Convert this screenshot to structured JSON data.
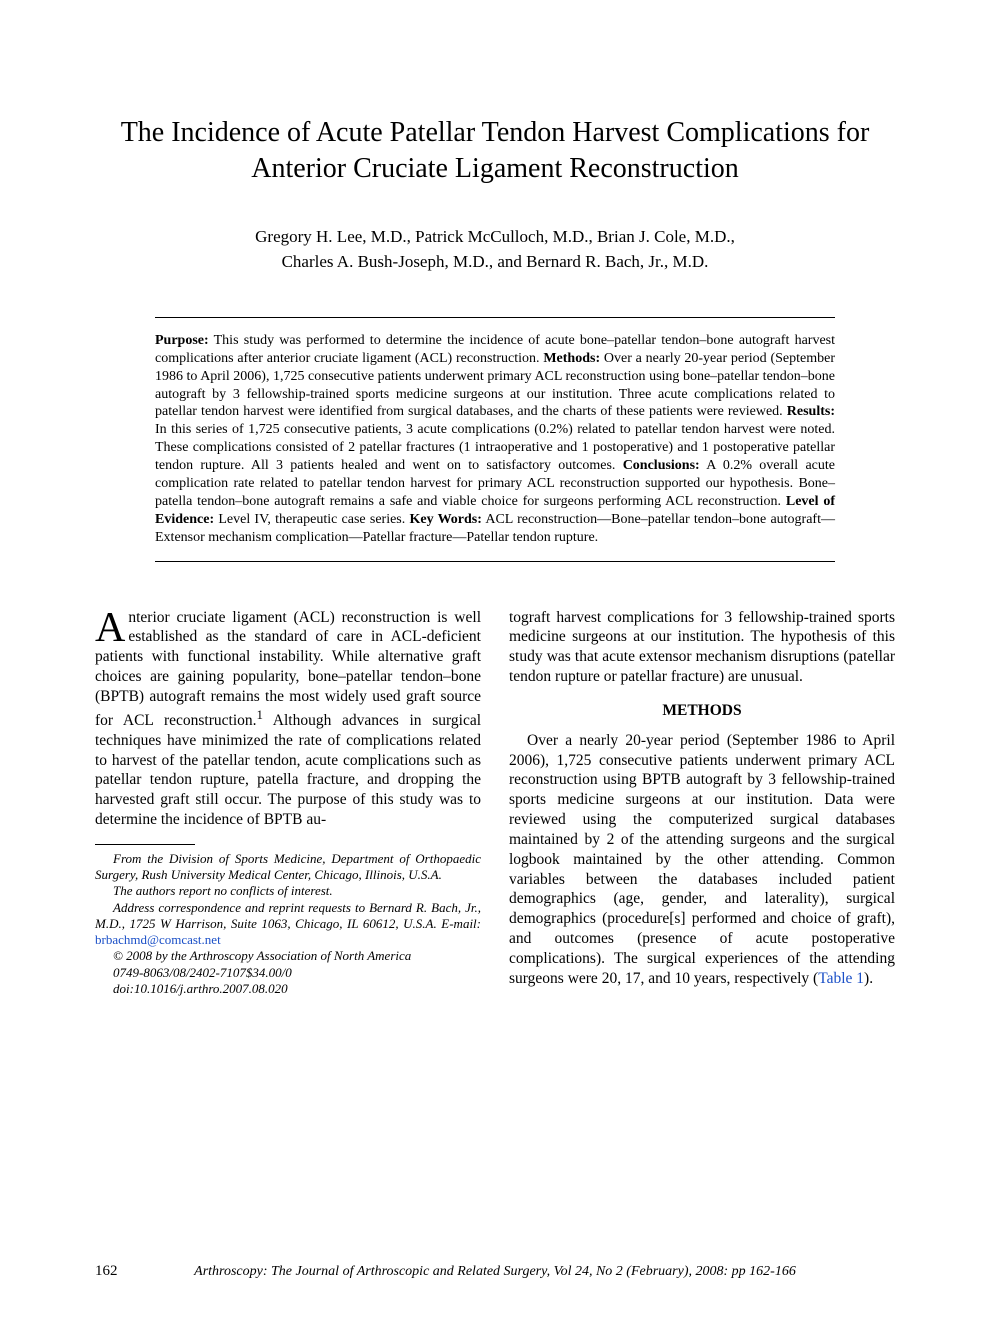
{
  "title": "The Incidence of Acute Patellar Tendon Harvest Complications for Anterior Cruciate Ligament Reconstruction",
  "authors_line1": "Gregory H. Lee, M.D., Patrick McCulloch, M.D., Brian J. Cole, M.D.,",
  "authors_line2": "Charles A. Bush-Joseph, M.D., and Bernard R. Bach, Jr., M.D.",
  "abstract": {
    "purpose_label": "Purpose:",
    "purpose": " This study was performed to determine the incidence of acute bone–patellar tendon–bone autograft harvest complications after anterior cruciate ligament (ACL) reconstruction. ",
    "methods_label": "Methods:",
    "methods": " Over a nearly 20-year period (September 1986 to April 2006), 1,725 consecutive patients underwent primary ACL reconstruction using bone–patellar tendon–bone autograft by 3 fellowship-trained sports medicine surgeons at our institution. Three acute complications related to patellar tendon harvest were identified from surgical databases, and the charts of these patients were reviewed. ",
    "results_label": "Results:",
    "results": " In this series of 1,725 consecutive patients, 3 acute complications (0.2%) related to patellar tendon harvest were noted. These complications consisted of 2 patellar fractures (1 intraoperative and 1 postoperative) and 1 postoperative patellar tendon rupture. All 3 patients healed and went on to satisfactory outcomes. ",
    "conclusions_label": "Conclusions:",
    "conclusions": " A 0.2% overall acute complication rate related to patellar tendon harvest for primary ACL reconstruction supported our hypothesis. Bone–patella tendon–bone autograft remains a safe and viable choice for surgeons performing ACL reconstruction. ",
    "loe_label": "Level of Evidence:",
    "loe": " Level IV, therapeutic case series. ",
    "keywords_label": "Key Words:",
    "keywords": " ACL reconstruction—Bone–patellar tendon–bone autograft—Extensor mechanism complication—Patellar fracture—Patellar tendon rupture."
  },
  "body": {
    "dropcap": "A",
    "intro_after_dropcap": "nterior cruciate ligament (ACL) reconstruction is well established as the standard of care in ACL-deficient patients with functional instability. While alternative graft choices are gaining popularity, bone–patellar tendon–bone (BPTB) autograft remains the most widely used graft source for ACL reconstruction.",
    "intro_sup": "1",
    "intro_rest": " Although advances in surgical techniques have minimized the rate of complications related to harvest of the patellar tendon, acute complications such as patellar tendon rupture, patella fracture, and dropping the harvested graft still occur. The purpose of this study was to determine the incidence of BPTB au-",
    "col2_top": "tograft harvest complications for 3 fellowship-trained sports medicine surgeons at our institution. The hypothesis of this study was that acute extensor mechanism disruptions (patellar tendon rupture or patellar fracture) are unusual.",
    "methods_head": "METHODS",
    "methods_para_a": "Over a nearly 20-year period (September 1986 to April 2006), 1,725 consecutive patients underwent primary ACL reconstruction using BPTB autograft by 3 fellowship-trained sports medicine surgeons at our institution. Data were reviewed using the computerized surgical databases maintained by 2 of the attending surgeons and the surgical logbook maintained by the other attending. Common variables between the databases included patient demographics (age, gender, and laterality), surgical demographics (procedure[s] performed and choice of graft), and outcomes (presence of acute postoperative complications). The surgical experiences of the attending surgeons were 20, 17, and 10 years, respectively (",
    "table_ref": "Table 1",
    "methods_para_b": ")."
  },
  "footnotes": {
    "affiliation": "From the Division of Sports Medicine, Department of Orthopaedic Surgery, Rush University Medical Center, Chicago, Illinois, U.S.A.",
    "conflict": "The authors report no conflicts of interest.",
    "correspondence_a": "Address correspondence and reprint requests to Bernard R. Bach, Jr., M.D., 1725 W Harrison, Suite 1063, Chicago, IL 60612, U.S.A. E-mail: ",
    "email": "brbachmd@comcast.net",
    "copyright": "© 2008 by the Arthroscopy Association of North America",
    "issn": "0749-8063/08/2402-7107$34.00/0",
    "doi": "doi:10.1016/j.arthro.2007.08.020"
  },
  "footer": {
    "page_number": "162",
    "journal": "Arthroscopy: The Journal of Arthroscopic and Related Surgery, Vol 24, No 2 (February), 2008: pp 162-166"
  }
}
